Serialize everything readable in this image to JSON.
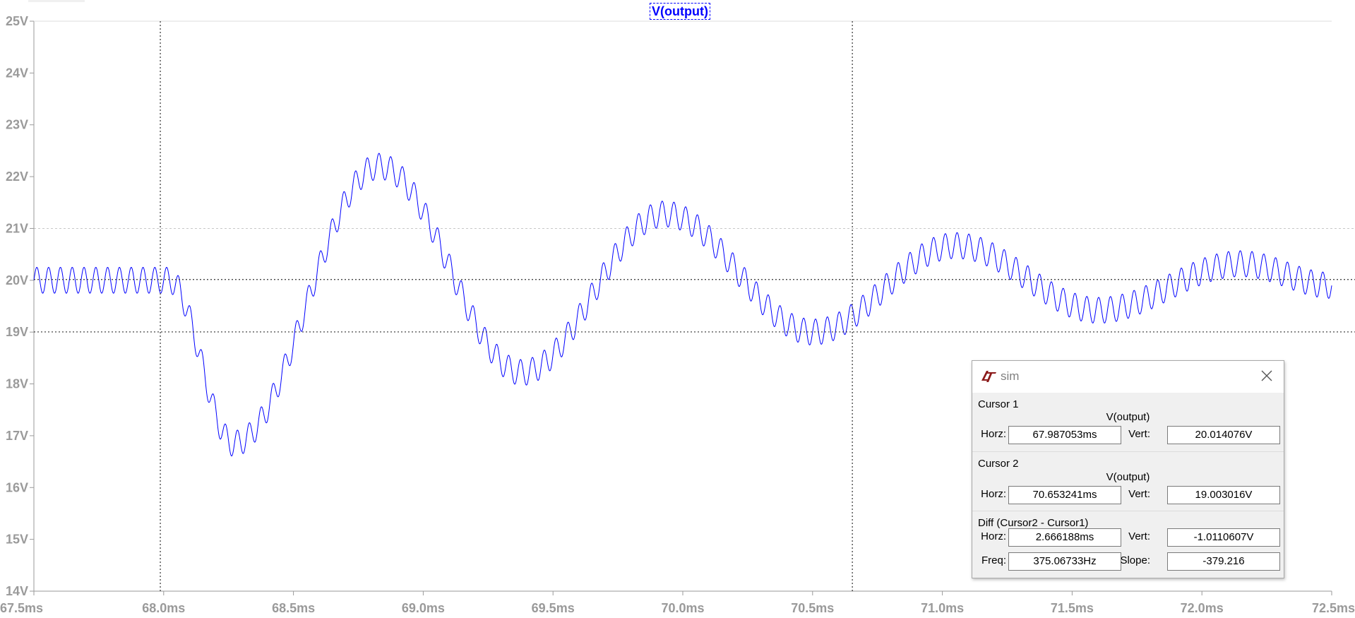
{
  "window": {
    "trace_title": "V(output)"
  },
  "chart_data": {
    "type": "line",
    "title": "V(output)",
    "x_unit": "ms",
    "y_unit": "V",
    "xlim": [
      67.5,
      72.5
    ],
    "ylim": [
      14,
      25
    ],
    "x_ticks": [
      "67.5ms",
      "68.0ms",
      "68.5ms",
      "69.0ms",
      "69.5ms",
      "70.0ms",
      "70.5ms",
      "71.0ms",
      "71.5ms",
      "72.0ms",
      "72.5ms"
    ],
    "y_ticks": [
      "25V",
      "24V",
      "23V",
      "22V",
      "21V",
      "20V",
      "19V",
      "18V",
      "17V",
      "16V",
      "15V",
      "14V"
    ],
    "grid": "horizontal at 21V",
    "series": [
      {
        "name": "V(output)",
        "color": "#0000ff",
        "ripple_amplitude_v": 0.25,
        "ripple_freq_per_ms": 22,
        "envelope": {
          "x": [
            67.5,
            68.0,
            68.02,
            68.27,
            68.83,
            69.38,
            69.93,
            70.5,
            71.05,
            71.6,
            72.15,
            72.5
          ],
          "y": [
            20.0,
            20.0,
            20.0,
            16.85,
            22.2,
            18.22,
            21.28,
            19.0,
            20.67,
            19.42,
            20.32,
            19.9
          ]
        }
      }
    ],
    "cursors": [
      {
        "x": 67.987053,
        "y": 20.014076
      },
      {
        "x": 70.653241,
        "y": 19.003016
      }
    ]
  },
  "cursor_dialog": {
    "title": "sim",
    "logo": "ltspice-logo-icon",
    "close_icon": "close-icon",
    "cursor1": {
      "label": "Cursor 1",
      "trace": "V(output)",
      "horz_label": "Horz:",
      "horz": "67.987053ms",
      "vert_label": "Vert:",
      "vert": "20.014076V"
    },
    "cursor2": {
      "label": "Cursor 2",
      "trace": "V(output)",
      "horz_label": "Horz:",
      "horz": "70.653241ms",
      "vert_label": "Vert:",
      "vert": "19.003016V"
    },
    "diff": {
      "label": "Diff (Cursor2 - Cursor1)",
      "horz_label": "Horz:",
      "horz": "2.666188ms",
      "vert_label": "Vert:",
      "vert": "-1.0110607V",
      "freq_label": "Freq:",
      "freq": "375.06733Hz",
      "slope_label": "Slope:",
      "slope": "-379.216"
    }
  }
}
